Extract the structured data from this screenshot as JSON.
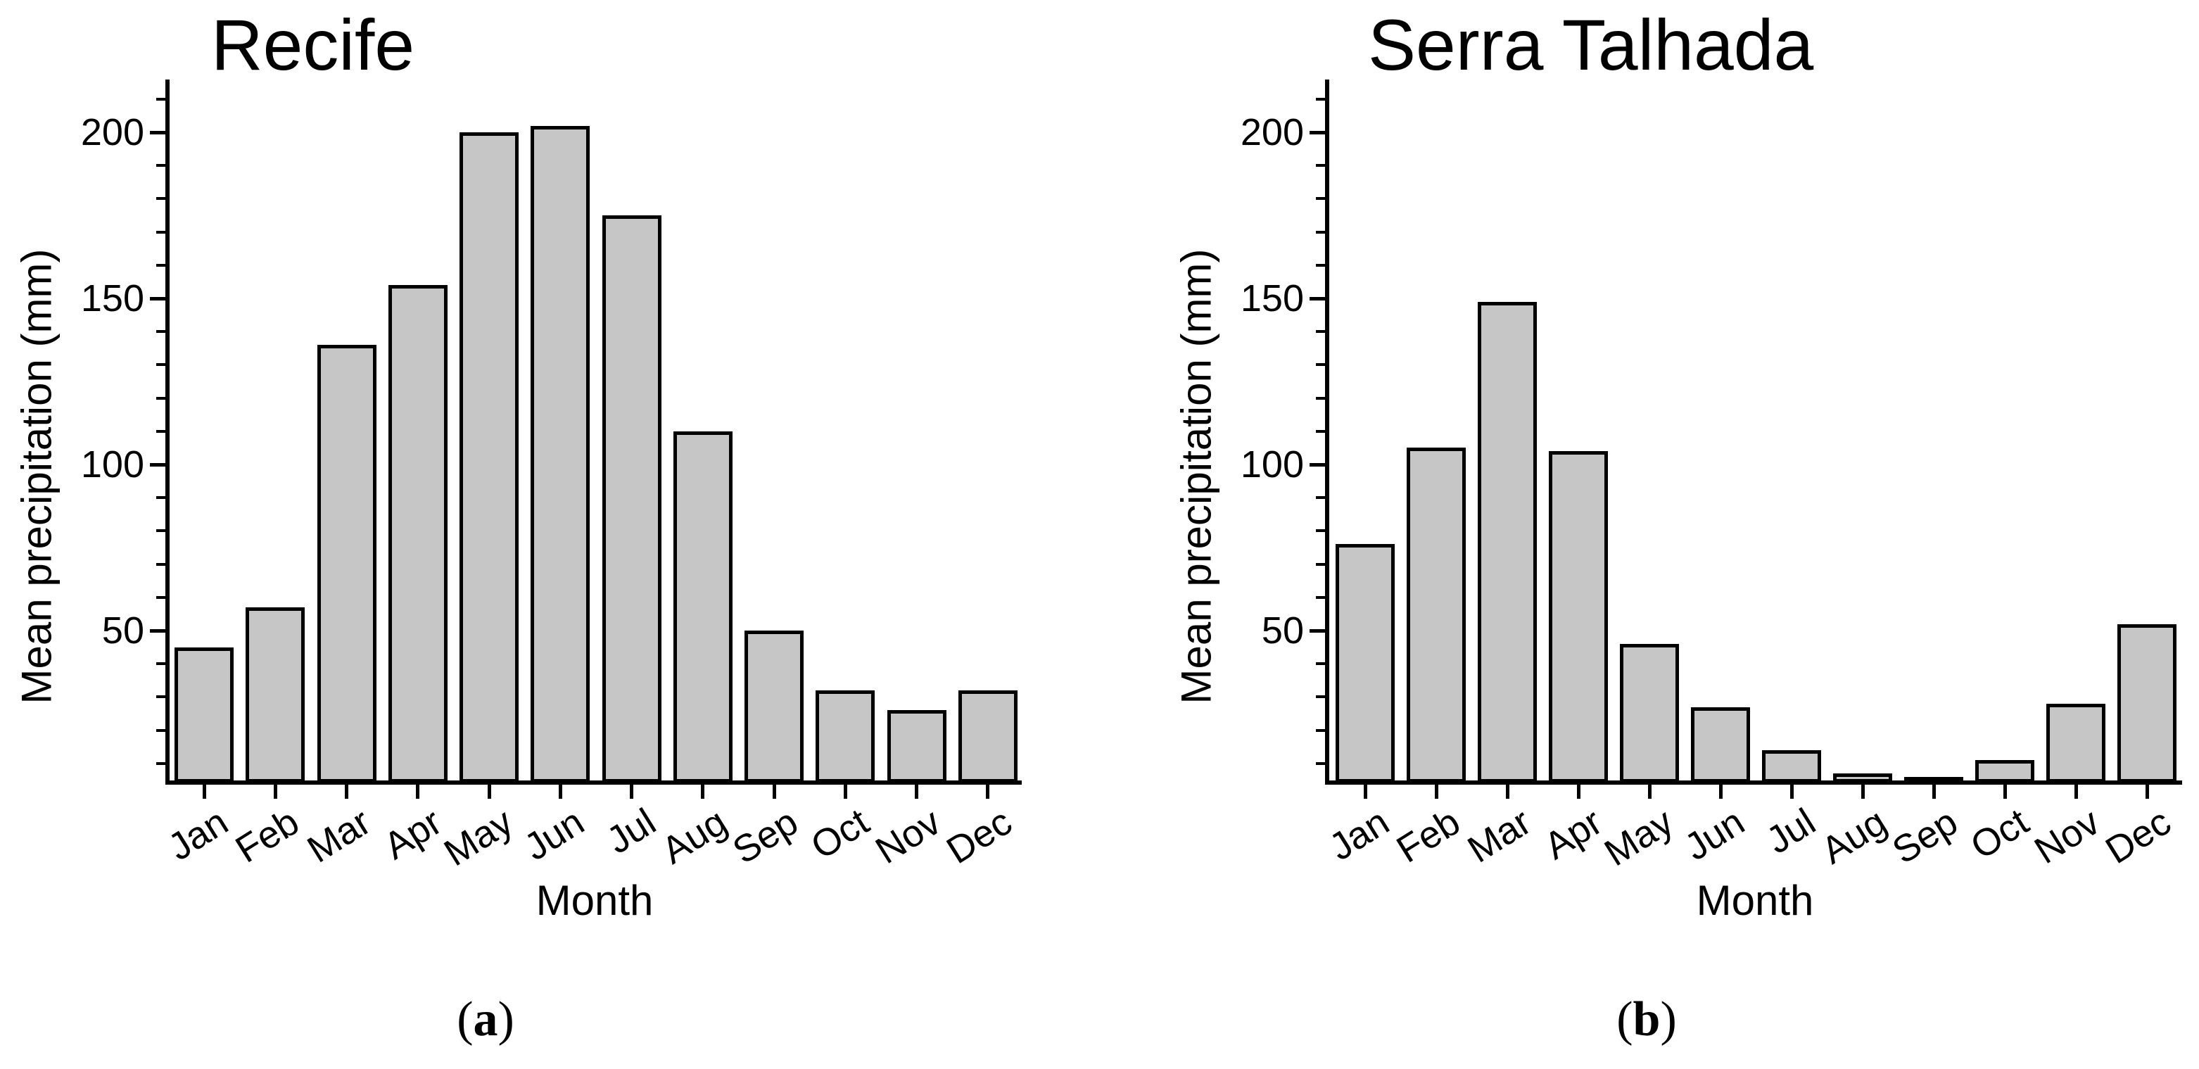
{
  "figure": {
    "background": "#ffffff",
    "text_color": "#000000",
    "bar_fill": "#c6c6c6",
    "bar_outline": "#000000"
  },
  "chart_data": [
    {
      "type": "bar",
      "title": "Recife",
      "xlabel": "Month",
      "ylabel": "Mean precipitation (mm)",
      "categories": [
        "Jan",
        "Feb",
        "Mar",
        "Apr",
        "May",
        "Jun",
        "Jul",
        "Aug",
        "Sep",
        "Oct",
        "Nov",
        "Dec"
      ],
      "values": [
        45,
        57,
        136,
        154,
        200,
        202,
        175,
        110,
        50,
        32,
        26,
        32
      ],
      "yticks": [
        50,
        100,
        150,
        200
      ],
      "y_minor_step": 10,
      "ylim": [
        0,
        215
      ],
      "grid": false,
      "legend": "none",
      "caption_pre": "(",
      "caption_letter": "a",
      "caption_post": ")"
    },
    {
      "type": "bar",
      "title": "Serra Talhada",
      "xlabel": "Month",
      "ylabel": "Mean precipitation (mm)",
      "categories": [
        "Jan",
        "Feb",
        "Mar",
        "Apr",
        "May",
        "Jun",
        "Jul",
        "Aug",
        "Sep",
        "Oct",
        "Nov",
        "Dec"
      ],
      "values": [
        76,
        105,
        149,
        104,
        46,
        27,
        14,
        7,
        5,
        11,
        28,
        52
      ],
      "yticks": [
        50,
        100,
        150,
        200
      ],
      "y_minor_step": 10,
      "ylim": [
        0,
        215
      ],
      "grid": false,
      "legend": "none",
      "caption_pre": "(",
      "caption_letter": "b",
      "caption_post": ")"
    }
  ]
}
